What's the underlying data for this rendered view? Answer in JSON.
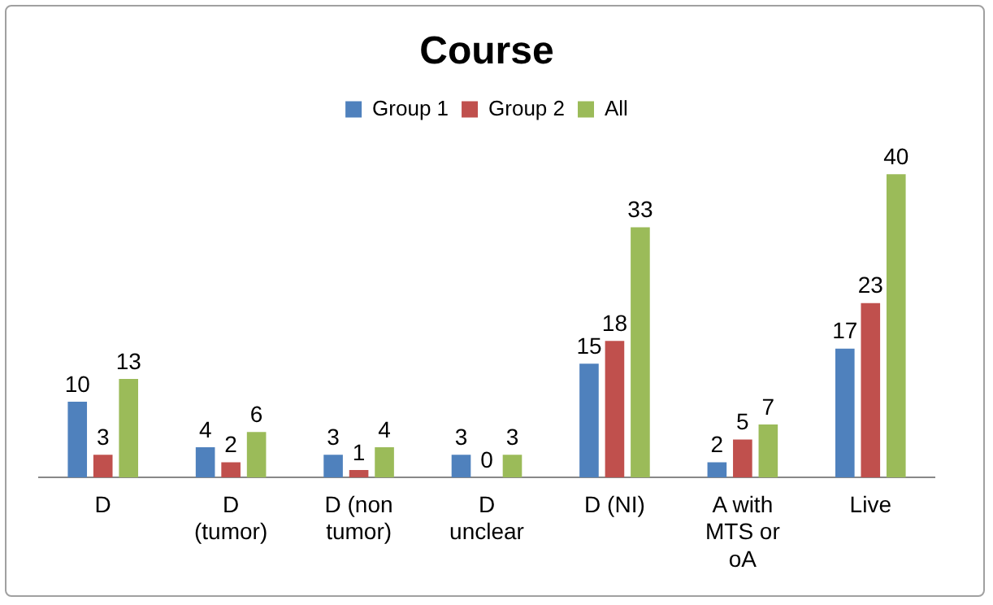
{
  "chart_data": {
    "type": "bar",
    "title": "Course",
    "categories": [
      "D",
      "D (tumor)",
      "D (non tumor)",
      "D unclear",
      "D (NI)",
      "A with MTS or oA",
      "Live"
    ],
    "series": [
      {
        "name": "Group 1",
        "color": "#4f81bd",
        "values": [
          10,
          4,
          3,
          3,
          15,
          2,
          17
        ]
      },
      {
        "name": "Group 2",
        "color": "#c0504d",
        "values": [
          3,
          2,
          1,
          0,
          18,
          5,
          23
        ]
      },
      {
        "name": "All",
        "color": "#9bbb59",
        "values": [
          13,
          6,
          4,
          3,
          33,
          7,
          40
        ]
      }
    ],
    "data_labels": true,
    "legend": "top",
    "grid": false,
    "tick_labels": "x"
  }
}
